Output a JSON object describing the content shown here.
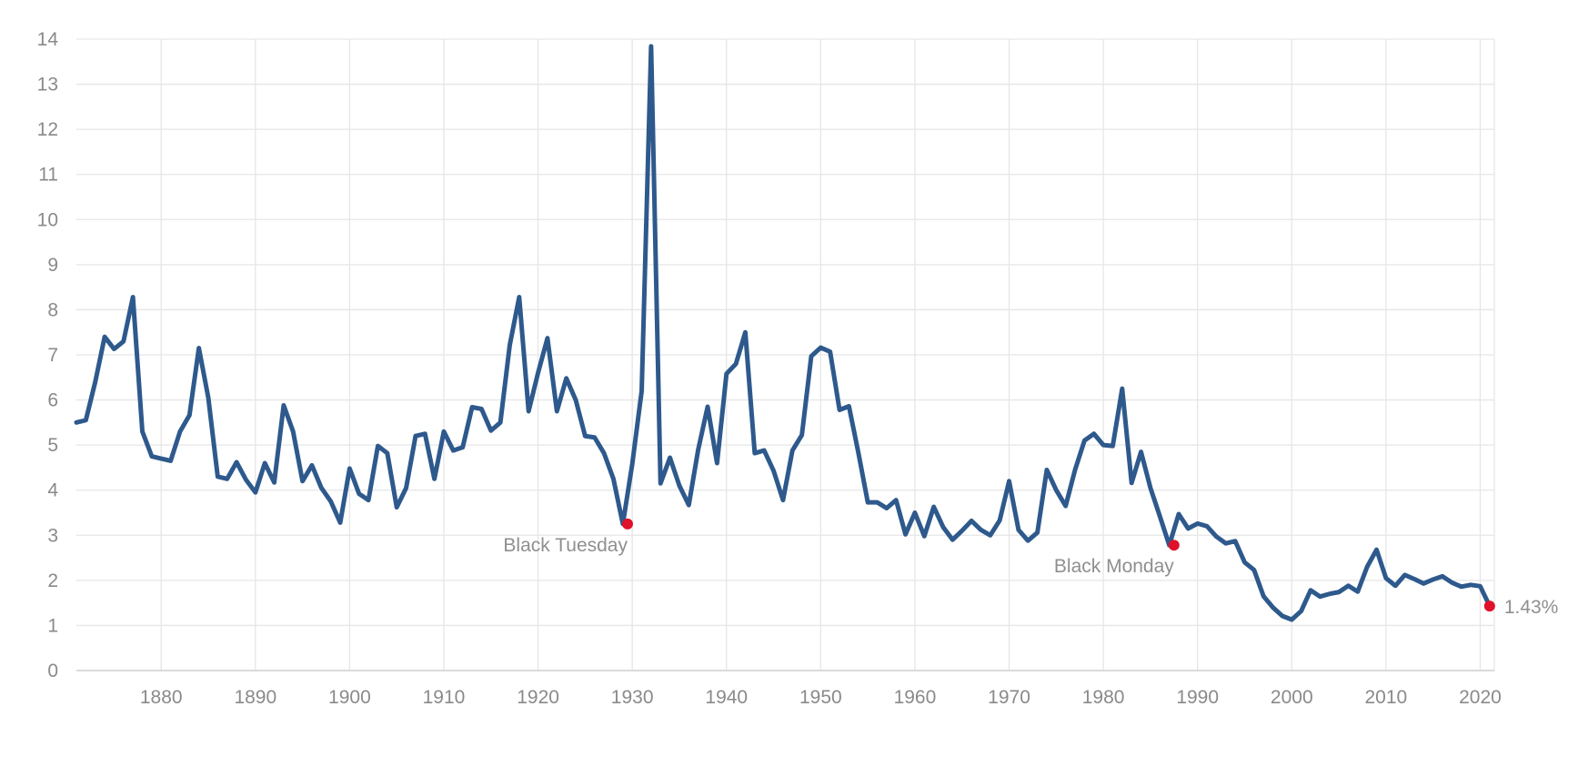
{
  "colors": {
    "series": "#2e598c",
    "marker": "#e0112b",
    "grid": "#e6e6e6",
    "label": "#8a8a8a"
  },
  "chart_data": {
    "type": "line",
    "title": "",
    "xlabel": "",
    "ylabel": "",
    "xlim": [
      1871,
      2021.5
    ],
    "ylim": [
      0,
      14
    ],
    "grid": true,
    "x_ticks": [
      1880,
      1890,
      1900,
      1910,
      1920,
      1930,
      1940,
      1950,
      1960,
      1970,
      1980,
      1990,
      2000,
      2010,
      2020
    ],
    "y_ticks": [
      0,
      1,
      2,
      3,
      4,
      5,
      6,
      7,
      8,
      9,
      10,
      11,
      12,
      13,
      14
    ],
    "series": [
      {
        "points": [
          [
            1871,
            5.5
          ],
          [
            1872,
            5.55
          ],
          [
            1873,
            6.4
          ],
          [
            1874,
            7.4
          ],
          [
            1875,
            7.13
          ],
          [
            1876,
            7.3
          ],
          [
            1877,
            8.28
          ],
          [
            1878,
            5.3
          ],
          [
            1879,
            4.75
          ],
          [
            1880,
            4.7
          ],
          [
            1881,
            4.65
          ],
          [
            1882,
            5.3
          ],
          [
            1883,
            5.66
          ],
          [
            1884,
            7.15
          ],
          [
            1885,
            6.05
          ],
          [
            1886,
            4.3
          ],
          [
            1887,
            4.25
          ],
          [
            1888,
            4.62
          ],
          [
            1889,
            4.23
          ],
          [
            1890,
            3.95
          ],
          [
            1891,
            4.6
          ],
          [
            1892,
            4.17
          ],
          [
            1893,
            5.88
          ],
          [
            1894,
            5.3
          ],
          [
            1895,
            4.2
          ],
          [
            1896,
            4.55
          ],
          [
            1897,
            4.05
          ],
          [
            1898,
            3.75
          ],
          [
            1899,
            3.28
          ],
          [
            1900,
            4.48
          ],
          [
            1901,
            3.92
          ],
          [
            1902,
            3.78
          ],
          [
            1903,
            4.98
          ],
          [
            1904,
            4.82
          ],
          [
            1905,
            3.62
          ],
          [
            1906,
            4.05
          ],
          [
            1907,
            5.2
          ],
          [
            1908,
            5.25
          ],
          [
            1909,
            4.25
          ],
          [
            1910,
            5.3
          ],
          [
            1911,
            4.88
          ],
          [
            1912,
            4.95
          ],
          [
            1913,
            5.84
          ],
          [
            1914,
            5.8
          ],
          [
            1915,
            5.32
          ],
          [
            1916,
            5.5
          ],
          [
            1917,
            7.22
          ],
          [
            1918,
            8.28
          ],
          [
            1919,
            5.75
          ],
          [
            1920,
            6.6
          ],
          [
            1921,
            7.37
          ],
          [
            1922,
            5.75
          ],
          [
            1923,
            6.48
          ],
          [
            1924,
            6.0
          ],
          [
            1925,
            5.2
          ],
          [
            1926,
            5.17
          ],
          [
            1927,
            4.82
          ],
          [
            1928,
            4.25
          ],
          [
            1929,
            3.25
          ],
          [
            1930,
            4.58
          ],
          [
            1931,
            6.2
          ],
          [
            1932,
            13.84
          ],
          [
            1933,
            4.15
          ],
          [
            1934,
            4.72
          ],
          [
            1935,
            4.1
          ],
          [
            1936,
            3.67
          ],
          [
            1937,
            4.9
          ],
          [
            1938,
            5.85
          ],
          [
            1939,
            4.6
          ],
          [
            1940,
            6.58
          ],
          [
            1941,
            6.8
          ],
          [
            1942,
            7.5
          ],
          [
            1943,
            4.82
          ],
          [
            1944,
            4.88
          ],
          [
            1945,
            4.43
          ],
          [
            1946,
            3.78
          ],
          [
            1947,
            4.88
          ],
          [
            1948,
            5.22
          ],
          [
            1949,
            6.97
          ],
          [
            1950,
            7.16
          ],
          [
            1951,
            7.07
          ],
          [
            1952,
            5.78
          ],
          [
            1953,
            5.86
          ],
          [
            1954,
            4.83
          ],
          [
            1955,
            3.73
          ],
          [
            1956,
            3.73
          ],
          [
            1957,
            3.6
          ],
          [
            1958,
            3.78
          ],
          [
            1959,
            3.02
          ],
          [
            1960,
            3.5
          ],
          [
            1961,
            2.98
          ],
          [
            1962,
            3.63
          ],
          [
            1963,
            3.18
          ],
          [
            1964,
            2.9
          ],
          [
            1965,
            3.1
          ],
          [
            1966,
            3.32
          ],
          [
            1967,
            3.12
          ],
          [
            1968,
            3.0
          ],
          [
            1969,
            3.33
          ],
          [
            1970,
            4.2
          ],
          [
            1971,
            3.12
          ],
          [
            1972,
            2.88
          ],
          [
            1973,
            3.06
          ],
          [
            1974,
            4.45
          ],
          [
            1975,
            4.0
          ],
          [
            1976,
            3.65
          ],
          [
            1977,
            4.45
          ],
          [
            1978,
            5.1
          ],
          [
            1979,
            5.25
          ],
          [
            1980,
            5.0
          ],
          [
            1981,
            4.98
          ],
          [
            1982,
            6.25
          ],
          [
            1983,
            4.16
          ],
          [
            1984,
            4.85
          ],
          [
            1985,
            4.05
          ],
          [
            1986,
            3.42
          ],
          [
            1987,
            2.78
          ],
          [
            1988,
            3.47
          ],
          [
            1989,
            3.15
          ],
          [
            1990,
            3.26
          ],
          [
            1991,
            3.2
          ],
          [
            1992,
            2.97
          ],
          [
            1993,
            2.82
          ],
          [
            1994,
            2.87
          ],
          [
            1995,
            2.4
          ],
          [
            1996,
            2.23
          ],
          [
            1997,
            1.65
          ],
          [
            1998,
            1.4
          ],
          [
            1999,
            1.21
          ],
          [
            2000,
            1.13
          ],
          [
            2001,
            1.32
          ],
          [
            2002,
            1.78
          ],
          [
            2003,
            1.64
          ],
          [
            2004,
            1.7
          ],
          [
            2005,
            1.74
          ],
          [
            2006,
            1.88
          ],
          [
            2007,
            1.75
          ],
          [
            2008,
            2.3
          ],
          [
            2009,
            2.68
          ],
          [
            2010,
            2.05
          ],
          [
            2011,
            1.88
          ],
          [
            2012,
            2.12
          ],
          [
            2013,
            2.03
          ],
          [
            2014,
            1.93
          ],
          [
            2015,
            2.02
          ],
          [
            2016,
            2.09
          ],
          [
            2017,
            1.95
          ],
          [
            2018,
            1.86
          ],
          [
            2019,
            1.9
          ],
          [
            2020,
            1.87
          ],
          [
            2021,
            1.43
          ]
        ]
      }
    ],
    "annotations": [
      {
        "label": "Black Tuesday",
        "x": 1929.5,
        "y": 3.25
      },
      {
        "label": "Black Monday",
        "x": 1987.5,
        "y": 2.78
      }
    ],
    "end_label": {
      "label": "1.43%",
      "x": 2021,
      "y": 1.43
    }
  }
}
